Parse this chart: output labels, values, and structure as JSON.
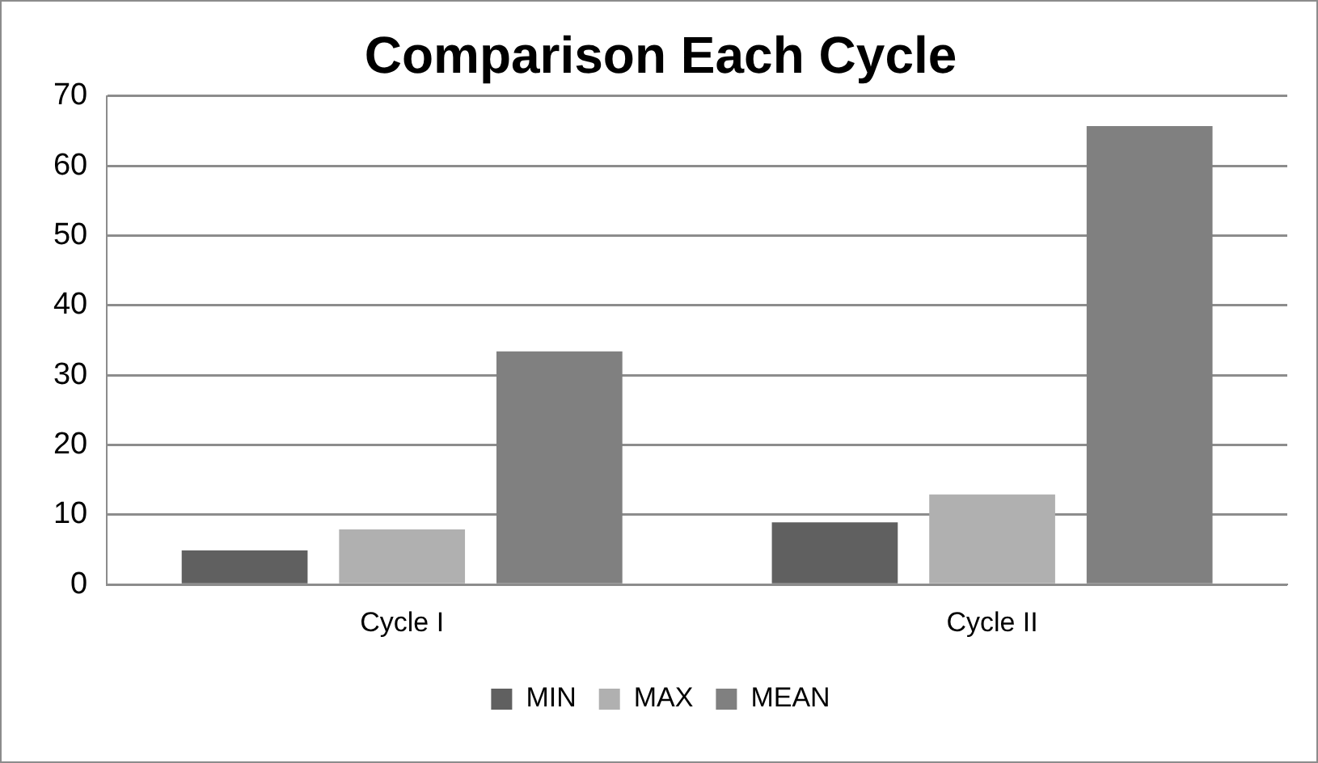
{
  "chart_data": {
    "type": "bar",
    "title": "Comparison Each Cycle",
    "categories": [
      "Cycle I",
      "Cycle II"
    ],
    "series": [
      {
        "name": "MIN",
        "color": "#606060",
        "values": [
          4.9,
          8.9
        ]
      },
      {
        "name": "MAX",
        "color": "#b0b0b0",
        "values": [
          7.9,
          12.9
        ]
      },
      {
        "name": "MEAN",
        "color": "#808080",
        "values": [
          33.4,
          65.7
        ]
      }
    ],
    "ylim": [
      0,
      70
    ],
    "yticks": [
      0,
      10,
      20,
      30,
      40,
      50,
      60,
      70
    ],
    "grid": "y",
    "legend": "bottom"
  }
}
